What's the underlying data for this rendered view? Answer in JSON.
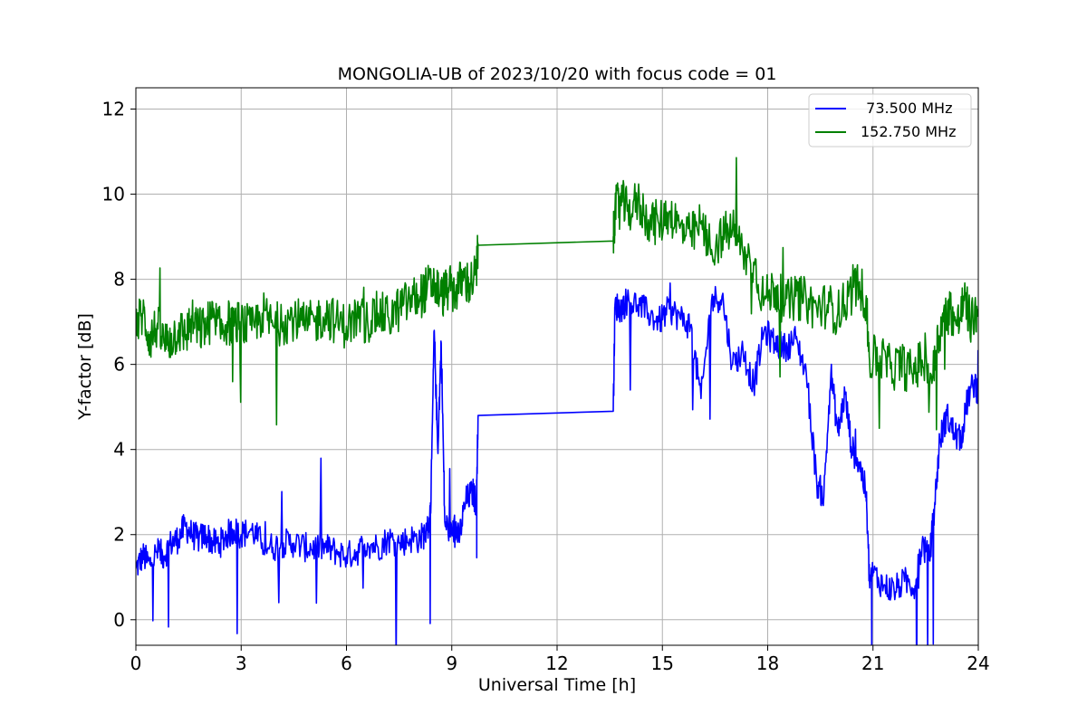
{
  "chart_data": {
    "type": "line",
    "title": "MONGOLIA-UB of 2023/10/20 with focus code = 01",
    "xlabel": "Universal Time [h]",
    "ylabel": "Y-factor [dB]",
    "xlim": [
      0,
      24
    ],
    "ylim": [
      -0.6,
      12.5
    ],
    "xticks": [
      0,
      3,
      6,
      9,
      12,
      15,
      18,
      21,
      24
    ],
    "yticks": [
      0,
      2,
      4,
      6,
      8,
      10,
      12
    ],
    "grid": true,
    "legend_position": "top-right",
    "series": [
      {
        "name": "  73.500 MHz",
        "color": "#0000ff",
        "x": [
          0.0,
          0.2,
          0.4,
          0.6,
          0.8,
          1.0,
          1.2,
          1.4,
          1.6,
          1.8,
          2.0,
          2.2,
          2.4,
          2.6,
          2.8,
          3.0,
          3.3,
          3.6,
          3.9,
          4.2,
          4.5,
          4.8,
          5.1,
          5.4,
          5.7,
          6.0,
          6.3,
          6.6,
          6.9,
          7.2,
          7.5,
          7.8,
          8.1,
          8.3,
          8.4,
          8.5,
          8.6,
          8.7,
          8.8,
          9.0,
          9.1,
          9.2,
          9.4,
          9.6,
          9.7,
          9.75,
          13.6,
          13.65,
          13.8,
          14.0,
          14.3,
          14.6,
          14.9,
          15.2,
          15.5,
          15.8,
          16.1,
          16.4,
          16.7,
          17.0,
          17.3,
          17.6,
          17.9,
          18.2,
          18.5,
          18.8,
          19.1,
          19.4,
          19.6,
          19.8,
          20.0,
          20.2,
          20.4,
          20.6,
          20.8,
          20.9,
          21.0,
          21.3,
          21.6,
          21.9,
          22.2,
          22.4,
          22.6,
          22.75,
          22.9,
          23.1,
          23.3,
          23.5,
          23.7,
          23.9,
          24.0
        ],
        "y": [
          1.2,
          1.5,
          1.3,
          1.6,
          1.5,
          1.8,
          1.9,
          2.2,
          2.0,
          1.9,
          2.0,
          1.8,
          1.8,
          2.0,
          2.1,
          2.0,
          2.1,
          1.8,
          1.7,
          1.8,
          1.8,
          1.7,
          1.7,
          1.7,
          1.6,
          1.5,
          1.6,
          1.8,
          1.7,
          1.9,
          1.8,
          1.9,
          1.9,
          2.1,
          2.5,
          6.8,
          4.0,
          6.5,
          2.3,
          2.0,
          2.2,
          1.9,
          2.8,
          3.0,
          2.7,
          4.8,
          4.9,
          7.4,
          7.3,
          7.5,
          7.4,
          7.2,
          7.0,
          7.3,
          7.1,
          6.9,
          5.2,
          7.5,
          7.6,
          6.0,
          6.3,
          5.5,
          6.8,
          6.5,
          6.4,
          6.6,
          5.8,
          3.2,
          2.9,
          5.8,
          4.4,
          5.3,
          4.0,
          3.7,
          3.0,
          0.9,
          1.1,
          0.8,
          0.7,
          0.9,
          0.8,
          1.8,
          1.4,
          2.6,
          4.2,
          4.8,
          4.4,
          4.2,
          5.2,
          5.6,
          5.3
        ]
      },
      {
        "name": "152.750 MHz",
        "color": "#008000",
        "x": [
          0.0,
          0.2,
          0.4,
          0.6,
          0.8,
          1.0,
          1.2,
          1.4,
          1.6,
          1.8,
          2.0,
          2.2,
          2.4,
          2.6,
          2.8,
          3.0,
          3.3,
          3.6,
          3.9,
          4.2,
          4.5,
          4.8,
          5.1,
          5.4,
          5.7,
          6.0,
          6.3,
          6.6,
          6.9,
          7.2,
          7.5,
          7.8,
          8.1,
          8.3,
          8.5,
          8.7,
          8.9,
          9.1,
          9.3,
          9.5,
          9.7,
          9.75,
          13.6,
          13.65,
          13.8,
          14.0,
          14.3,
          14.6,
          14.9,
          15.2,
          15.5,
          15.8,
          16.1,
          16.4,
          16.7,
          17.0,
          17.3,
          17.6,
          17.9,
          18.2,
          18.5,
          18.8,
          19.1,
          19.4,
          19.7,
          20.0,
          20.3,
          20.6,
          20.8,
          20.9,
          21.2,
          21.5,
          21.8,
          22.1,
          22.4,
          22.7,
          22.85,
          23.0,
          23.2,
          23.4,
          23.6,
          23.8,
          24.0
        ],
        "y": [
          6.9,
          7.2,
          6.6,
          6.9,
          6.5,
          6.6,
          6.8,
          6.7,
          7.0,
          6.8,
          6.9,
          7.1,
          6.8,
          7.0,
          6.9,
          7.0,
          6.8,
          7.2,
          6.9,
          7.0,
          7.1,
          6.9,
          7.0,
          7.2,
          7.0,
          6.9,
          7.1,
          7.0,
          7.2,
          7.1,
          7.3,
          7.5,
          7.6,
          7.8,
          7.9,
          7.6,
          7.8,
          7.7,
          8.0,
          7.9,
          8.1,
          8.8,
          8.9,
          9.6,
          9.9,
          9.6,
          9.8,
          9.4,
          9.3,
          9.6,
          9.2,
          9.0,
          9.3,
          8.7,
          9.0,
          9.2,
          8.6,
          8.4,
          7.5,
          7.8,
          7.4,
          7.6,
          7.5,
          7.3,
          7.4,
          7.2,
          7.6,
          7.9,
          7.5,
          6.1,
          6.2,
          5.9,
          6.0,
          5.8,
          6.1,
          5.7,
          6.6,
          7.0,
          7.3,
          6.9,
          7.5,
          7.0,
          7.3
        ]
      }
    ]
  }
}
